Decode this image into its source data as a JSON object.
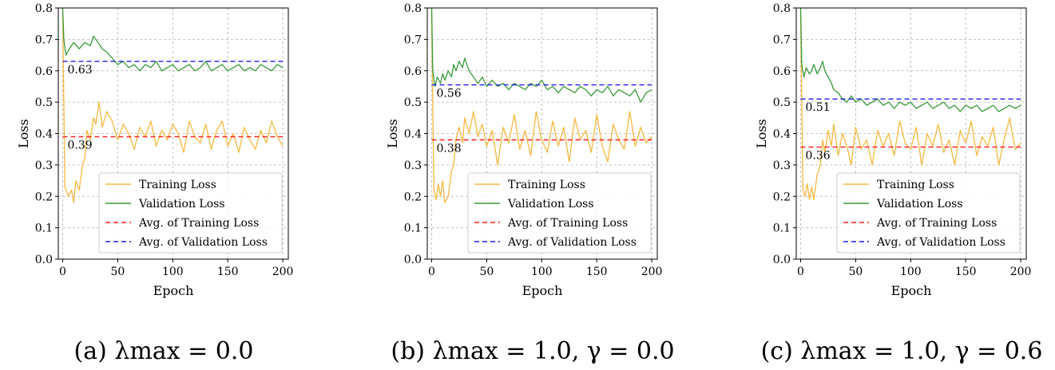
{
  "colors": {
    "training": "#F5B940",
    "validation": "#3A9A3A",
    "avg_training": "#FF1A1A",
    "avg_validation": "#1A1AE6",
    "grid": "#B0B0B0"
  },
  "chart_data": [
    {
      "type": "line",
      "caption_prefix": "(a) ",
      "caption_math": "λmax = 0.0",
      "xlabel": "Epoch",
      "ylabel": "Loss",
      "xlim": [
        -4,
        205
      ],
      "ylim": [
        0.0,
        0.8
      ],
      "xticks": [
        0,
        50,
        100,
        150,
        200
      ],
      "yticks": [
        0.0,
        0.1,
        0.2,
        0.3,
        0.4,
        0.5,
        0.6,
        0.7,
        0.8
      ],
      "grid": true,
      "legend_position": "lower-right",
      "legend": [
        "Training Loss",
        "Validation Loss",
        "Avg. of Training Loss",
        "Avg. of Validation Loss"
      ],
      "avg_training": 0.39,
      "avg_validation": 0.63,
      "avg_training_label": "0.39",
      "avg_validation_label": "0.63",
      "series": [
        {
          "name": "Training Loss",
          "x": [
            0,
            2,
            5,
            8,
            10,
            12,
            15,
            18,
            20,
            22,
            25,
            28,
            30,
            33,
            36,
            40,
            45,
            50,
            55,
            60,
            65,
            70,
            75,
            80,
            85,
            90,
            95,
            100,
            105,
            110,
            115,
            120,
            125,
            130,
            135,
            140,
            145,
            150,
            155,
            160,
            165,
            170,
            175,
            180,
            185,
            190,
            195,
            200
          ],
          "y": [
            0.78,
            0.23,
            0.2,
            0.22,
            0.18,
            0.25,
            0.22,
            0.3,
            0.32,
            0.41,
            0.38,
            0.45,
            0.43,
            0.5,
            0.42,
            0.47,
            0.44,
            0.38,
            0.43,
            0.4,
            0.35,
            0.42,
            0.39,
            0.44,
            0.36,
            0.41,
            0.38,
            0.43,
            0.4,
            0.34,
            0.44,
            0.39,
            0.37,
            0.43,
            0.35,
            0.41,
            0.44,
            0.36,
            0.4,
            0.34,
            0.42,
            0.38,
            0.35,
            0.41,
            0.37,
            0.44,
            0.39,
            0.36
          ]
        },
        {
          "name": "Validation Loss",
          "x": [
            0,
            1,
            3,
            6,
            10,
            15,
            20,
            25,
            28,
            32,
            36,
            40,
            45,
            50,
            55,
            60,
            65,
            70,
            75,
            80,
            85,
            90,
            95,
            100,
            105,
            110,
            115,
            120,
            125,
            130,
            135,
            140,
            145,
            150,
            155,
            160,
            165,
            170,
            175,
            180,
            185,
            190,
            195,
            200
          ],
          "y": [
            0.8,
            0.7,
            0.65,
            0.67,
            0.69,
            0.67,
            0.69,
            0.68,
            0.71,
            0.69,
            0.67,
            0.66,
            0.64,
            0.62,
            0.63,
            0.61,
            0.62,
            0.6,
            0.62,
            0.61,
            0.63,
            0.6,
            0.61,
            0.62,
            0.6,
            0.61,
            0.62,
            0.6,
            0.61,
            0.63,
            0.6,
            0.61,
            0.62,
            0.6,
            0.61,
            0.62,
            0.6,
            0.61,
            0.6,
            0.62,
            0.61,
            0.6,
            0.62,
            0.61
          ]
        }
      ]
    },
    {
      "type": "line",
      "caption_prefix": "(b) ",
      "caption_math": "λmax = 1.0, γ = 0.0",
      "xlabel": "Epoch",
      "ylabel": "Loss",
      "xlim": [
        -4,
        205
      ],
      "ylim": [
        0.0,
        0.8
      ],
      "xticks": [
        0,
        50,
        100,
        150,
        200
      ],
      "yticks": [
        0.0,
        0.1,
        0.2,
        0.3,
        0.4,
        0.5,
        0.6,
        0.7,
        0.8
      ],
      "grid": true,
      "legend_position": "lower-right",
      "legend": [
        "Training Loss",
        "Validation Loss",
        "Avg. of Training Loss",
        "Avg. of Validation Loss"
      ],
      "avg_training": 0.38,
      "avg_validation": 0.555,
      "avg_training_label": "0.38",
      "avg_validation_label": "0.56",
      "series": [
        {
          "name": "Training Loss",
          "x": [
            0,
            2,
            4,
            6,
            8,
            10,
            12,
            15,
            18,
            20,
            22,
            25,
            28,
            30,
            34,
            38,
            42,
            46,
            50,
            55,
            60,
            65,
            70,
            75,
            80,
            85,
            90,
            95,
            100,
            105,
            110,
            115,
            120,
            125,
            130,
            135,
            140,
            145,
            150,
            155,
            160,
            165,
            170,
            175,
            180,
            185,
            190,
            195,
            200
          ],
          "y": [
            0.78,
            0.22,
            0.19,
            0.24,
            0.2,
            0.25,
            0.18,
            0.2,
            0.28,
            0.3,
            0.38,
            0.42,
            0.37,
            0.45,
            0.4,
            0.47,
            0.39,
            0.43,
            0.36,
            0.41,
            0.3,
            0.42,
            0.37,
            0.46,
            0.35,
            0.41,
            0.33,
            0.47,
            0.38,
            0.34,
            0.44,
            0.36,
            0.42,
            0.31,
            0.45,
            0.38,
            0.41,
            0.34,
            0.46,
            0.36,
            0.31,
            0.43,
            0.38,
            0.35,
            0.47,
            0.36,
            0.42,
            0.37,
            0.39
          ]
        },
        {
          "name": "Validation Loss",
          "x": [
            0,
            1,
            3,
            5,
            8,
            10,
            12,
            15,
            18,
            20,
            22,
            25,
            28,
            30,
            34,
            38,
            42,
            46,
            50,
            55,
            60,
            65,
            70,
            75,
            80,
            85,
            90,
            95,
            100,
            105,
            110,
            115,
            120,
            125,
            130,
            135,
            140,
            145,
            150,
            155,
            160,
            165,
            170,
            175,
            180,
            185,
            190,
            195,
            200
          ],
          "y": [
            0.8,
            0.6,
            0.55,
            0.58,
            0.56,
            0.59,
            0.57,
            0.6,
            0.58,
            0.62,
            0.6,
            0.63,
            0.61,
            0.64,
            0.6,
            0.58,
            0.56,
            0.58,
            0.55,
            0.57,
            0.55,
            0.56,
            0.54,
            0.56,
            0.55,
            0.54,
            0.56,
            0.55,
            0.57,
            0.54,
            0.55,
            0.53,
            0.55,
            0.54,
            0.53,
            0.55,
            0.54,
            0.52,
            0.54,
            0.53,
            0.55,
            0.52,
            0.54,
            0.53,
            0.52,
            0.54,
            0.5,
            0.53,
            0.54
          ]
        }
      ]
    },
    {
      "type": "line",
      "caption_prefix": "(c) ",
      "caption_math": "λmax = 1.0, γ = 0.6",
      "xlabel": "Epoch",
      "ylabel": "Loss",
      "xlim": [
        -4,
        205
      ],
      "ylim": [
        0.0,
        0.8
      ],
      "xticks": [
        0,
        50,
        100,
        150,
        200
      ],
      "yticks": [
        0.0,
        0.1,
        0.2,
        0.3,
        0.4,
        0.5,
        0.6,
        0.7,
        0.8
      ],
      "grid": true,
      "legend_position": "lower-right",
      "legend": [
        "Training Loss",
        "Validation Loss",
        "Avg. of Training Loss",
        "Avg. of Validation Loss"
      ],
      "avg_training": 0.357,
      "avg_validation": 0.51,
      "avg_training_label": "0.36",
      "avg_validation_label": "0.51",
      "series": [
        {
          "name": "Training Loss",
          "x": [
            0,
            2,
            4,
            6,
            8,
            10,
            12,
            15,
            18,
            20,
            22,
            25,
            28,
            30,
            34,
            38,
            42,
            46,
            50,
            55,
            60,
            65,
            70,
            75,
            80,
            85,
            90,
            95,
            100,
            105,
            110,
            115,
            120,
            125,
            130,
            135,
            140,
            145,
            150,
            155,
            160,
            165,
            170,
            175,
            180,
            185,
            190,
            195,
            200
          ],
          "y": [
            0.78,
            0.22,
            0.2,
            0.24,
            0.19,
            0.23,
            0.19,
            0.27,
            0.3,
            0.38,
            0.34,
            0.41,
            0.36,
            0.43,
            0.33,
            0.4,
            0.36,
            0.3,
            0.42,
            0.35,
            0.38,
            0.3,
            0.41,
            0.36,
            0.4,
            0.33,
            0.44,
            0.37,
            0.35,
            0.42,
            0.3,
            0.4,
            0.36,
            0.43,
            0.34,
            0.38,
            0.3,
            0.41,
            0.37,
            0.44,
            0.33,
            0.39,
            0.36,
            0.42,
            0.3,
            0.38,
            0.45,
            0.35,
            0.37
          ]
        },
        {
          "name": "Validation Loss",
          "x": [
            0,
            1,
            3,
            5,
            8,
            10,
            12,
            15,
            18,
            20,
            22,
            25,
            28,
            30,
            34,
            38,
            42,
            46,
            50,
            55,
            60,
            65,
            70,
            75,
            80,
            85,
            90,
            95,
            100,
            105,
            110,
            115,
            120,
            125,
            130,
            135,
            140,
            145,
            150,
            155,
            160,
            165,
            170,
            175,
            180,
            185,
            190,
            195,
            200
          ],
          "y": [
            0.8,
            0.62,
            0.58,
            0.61,
            0.59,
            0.6,
            0.62,
            0.59,
            0.61,
            0.63,
            0.6,
            0.58,
            0.56,
            0.54,
            0.53,
            0.51,
            0.5,
            0.52,
            0.5,
            0.51,
            0.49,
            0.5,
            0.51,
            0.49,
            0.5,
            0.48,
            0.5,
            0.49,
            0.5,
            0.48,
            0.49,
            0.5,
            0.48,
            0.49,
            0.5,
            0.48,
            0.49,
            0.47,
            0.49,
            0.48,
            0.49,
            0.47,
            0.48,
            0.49,
            0.47,
            0.48,
            0.49,
            0.48,
            0.49
          ]
        }
      ]
    }
  ]
}
